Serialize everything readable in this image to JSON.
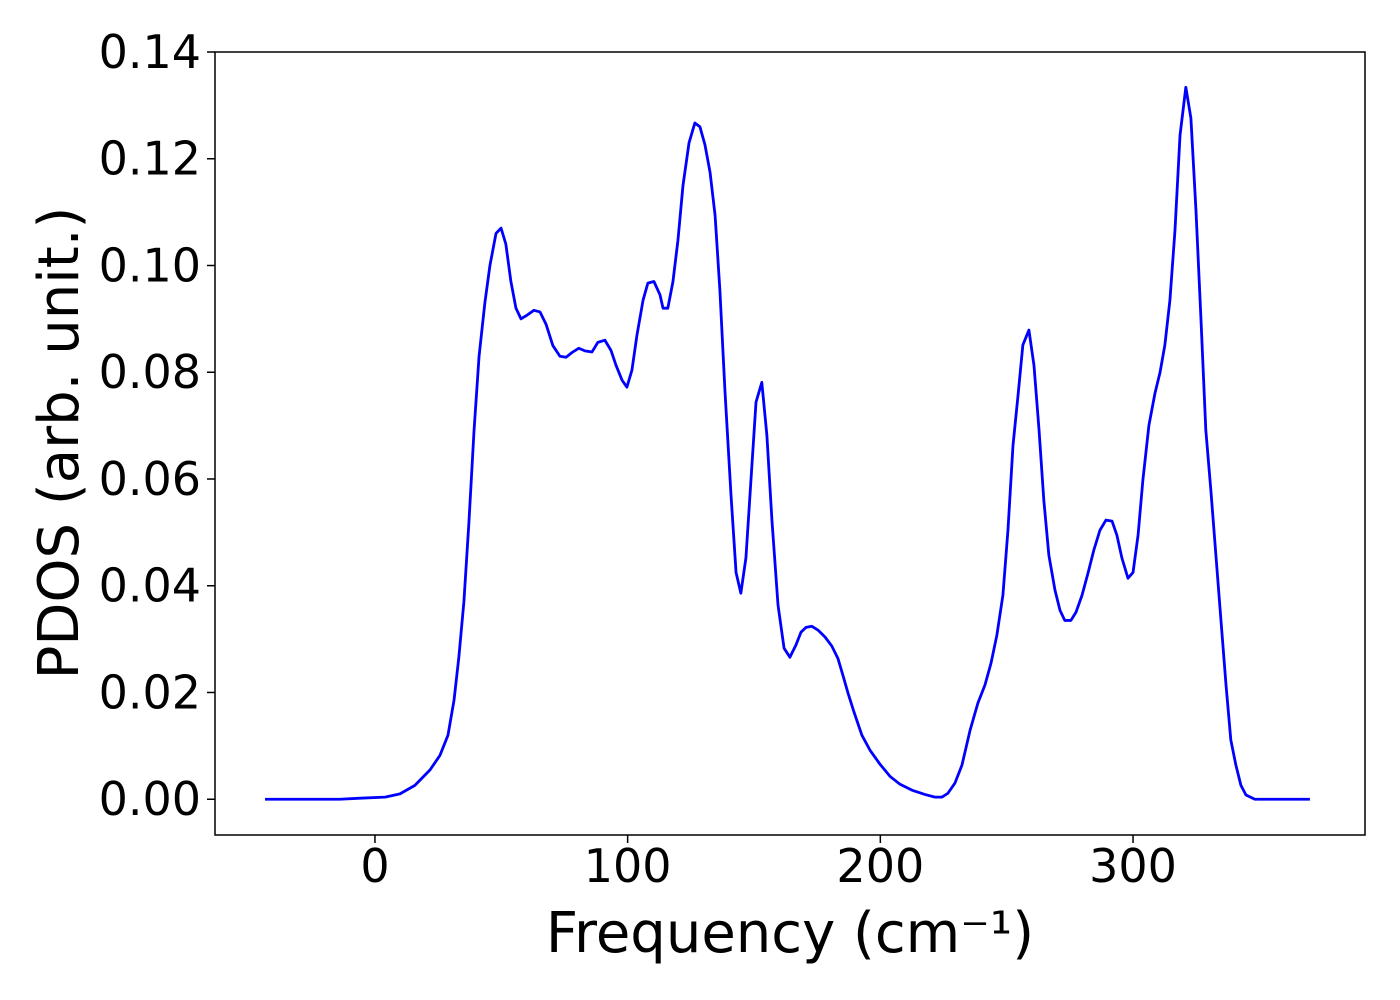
{
  "chart_data": {
    "type": "line",
    "xlabel": "Frequency (cm⁻¹)",
    "ylabel": "PDOS (arb. unit.)",
    "xlim": [
      -63.3,
      391.8
    ],
    "ylim": [
      -0.0067,
      0.14
    ],
    "xticks": [
      0,
      100,
      200,
      300
    ],
    "yticks": [
      {
        "value": 0,
        "label": "0.00"
      },
      {
        "value": 0.02,
        "label": "0.02"
      },
      {
        "value": 0.04,
        "label": "0.04"
      },
      {
        "value": 0.06,
        "label": "0.06"
      },
      {
        "value": 0.08,
        "label": "0.08"
      },
      {
        "value": 0.1,
        "label": "0.10"
      },
      {
        "value": 0.12,
        "label": "0.12"
      },
      {
        "value": 0.14,
        "label": "0.14"
      }
    ],
    "x": [
      -43.5,
      -13.9,
      -5.9,
      4.0,
      9.9,
      15.8,
      21.8,
      25.7,
      28.9,
      31.3,
      33.2,
      35.2,
      37.2,
      39.2,
      41.2,
      43.5,
      45.5,
      47.9,
      49.9,
      51.8,
      53.8,
      55.8,
      57.8,
      60.2,
      62.9,
      65.3,
      67.7,
      70.4,
      73.2,
      75.6,
      78.0,
      80.7,
      83.1,
      85.9,
      88.2,
      91.0,
      93.4,
      95.4,
      97.8,
      99.7,
      101.7,
      103.7,
      106.1,
      108.0,
      110.4,
      112.8,
      114.0,
      115.9,
      117.9,
      119.9,
      121.9,
      124.3,
      126.6,
      128.6,
      130.6,
      132.6,
      134.6,
      136.5,
      138.5,
      140.9,
      142.9,
      144.8,
      146.8,
      148.8,
      150.8,
      153.1,
      155.1,
      157.1,
      159.5,
      161.9,
      164.2,
      166.6,
      168.6,
      170.6,
      172.9,
      175.3,
      178.1,
      180.8,
      183.2,
      185.2,
      187.2,
      189.6,
      192.7,
      195.9,
      199.8,
      203.8,
      207.8,
      212.5,
      217.6,
      221.6,
      224.4,
      226.7,
      229.5,
      232.3,
      235.5,
      238.6,
      241.4,
      243.8,
      246.1,
      248.5,
      250.5,
      252.5,
      254.5,
      256.4,
      258.8,
      260.8,
      262.8,
      264.7,
      266.7,
      269.1,
      271.1,
      273.0,
      275.4,
      277.4,
      279.8,
      282.2,
      284.5,
      286.9,
      289.3,
      291.7,
      293.6,
      295.6,
      298.0,
      300.0,
      302.0,
      303.9,
      306.3,
      308.7,
      310.7,
      312.6,
      314.6,
      316.6,
      318.6,
      320.9,
      322.9,
      324.9,
      326.9,
      328.8,
      330.8,
      332.8,
      334.8,
      336.8,
      338.7,
      340.7,
      342.7,
      344.7,
      348.2,
      370.0
    ],
    "series": [
      {
        "color": "#0000ff",
        "values": [
          0,
          0,
          0.0002,
          0.0004,
          0.001,
          0.0026,
          0.0055,
          0.0082,
          0.012,
          0.0186,
          0.0266,
          0.037,
          0.052,
          0.069,
          0.083,
          0.093,
          0.1,
          0.106,
          0.107,
          0.104,
          0.097,
          0.092,
          0.09,
          0.0907,
          0.0916,
          0.0913,
          0.089,
          0.085,
          0.083,
          0.0828,
          0.0837,
          0.0845,
          0.084,
          0.0838,
          0.0856,
          0.086,
          0.0841,
          0.0813,
          0.0785,
          0.0772,
          0.0804,
          0.087,
          0.0935,
          0.0967,
          0.097,
          0.0945,
          0.092,
          0.092,
          0.0969,
          0.1047,
          0.115,
          0.123,
          0.1267,
          0.126,
          0.1226,
          0.1175,
          0.1094,
          0.0954,
          0.0766,
          0.057,
          0.0425,
          0.0386,
          0.0452,
          0.0598,
          0.0744,
          0.0781,
          0.0682,
          0.0523,
          0.0364,
          0.0283,
          0.0266,
          0.0289,
          0.0313,
          0.0322,
          0.0324,
          0.0317,
          0.0304,
          0.0287,
          0.0264,
          0.0232,
          0.0199,
          0.0163,
          0.012,
          0.0092,
          0.0066,
          0.0043,
          0.0028,
          0.0017,
          0.0009,
          0.0004,
          0.0004,
          0.0011,
          0.003,
          0.0064,
          0.0129,
          0.018,
          0.0214,
          0.0255,
          0.0307,
          0.0382,
          0.0504,
          0.0663,
          0.0757,
          0.0851,
          0.0879,
          0.0813,
          0.0692,
          0.056,
          0.0457,
          0.0392,
          0.0354,
          0.0335,
          0.0335,
          0.035,
          0.0382,
          0.0424,
          0.0467,
          0.0504,
          0.0523,
          0.0521,
          0.0495,
          0.0452,
          0.0414,
          0.0425,
          0.0495,
          0.0598,
          0.0701,
          0.0761,
          0.08,
          0.0851,
          0.0935,
          0.1066,
          0.1244,
          0.1334,
          0.1276,
          0.1104,
          0.0898,
          0.0692,
          0.0579,
          0.0457,
          0.0335,
          0.0214,
          0.0111,
          0.0064,
          0.0026,
          0.0008,
          0,
          0
        ]
      }
    ]
  }
}
